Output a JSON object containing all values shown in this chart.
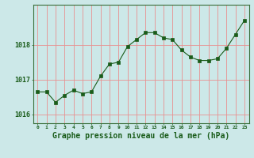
{
  "x": [
    0,
    1,
    2,
    3,
    4,
    5,
    6,
    7,
    8,
    9,
    10,
    11,
    12,
    13,
    14,
    15,
    16,
    17,
    18,
    19,
    20,
    21,
    22,
    23
  ],
  "y": [
    1016.65,
    1016.65,
    1016.35,
    1016.55,
    1016.7,
    1016.6,
    1016.65,
    1017.1,
    1017.45,
    1017.5,
    1017.95,
    1018.15,
    1018.35,
    1018.35,
    1018.2,
    1018.15,
    1017.85,
    1017.65,
    1017.55,
    1017.55,
    1017.6,
    1017.9,
    1018.3,
    1018.7
  ],
  "line_color": "#1a5c1a",
  "marker_color": "#1a5c1a",
  "bg_color": "#cce8e8",
  "grid_color": "#e89090",
  "border_color": "#3a6e3a",
  "xlabel": "Graphe pression niveau de la mer (hPa)",
  "xlabel_fontsize": 7,
  "yticks": [
    1016,
    1017,
    1018
  ],
  "ylim": [
    1015.75,
    1019.15
  ],
  "xlim": [
    -0.5,
    23.5
  ],
  "title_color": "#1a5c1a"
}
